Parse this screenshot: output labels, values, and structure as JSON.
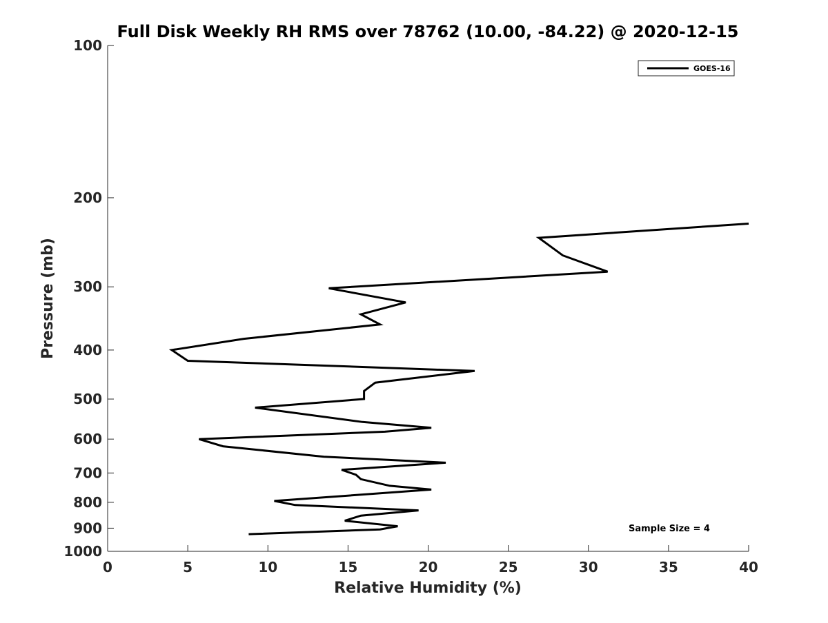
{
  "chart_data": {
    "type": "line",
    "title": "Full Disk Weekly RH RMS over 78762 (10.00, -84.22) @ 2020-12-15",
    "xlabel": "Relative Humidity (%)",
    "ylabel": "Pressure (mb)",
    "xlim": [
      0,
      40
    ],
    "ylim": [
      100,
      1000
    ],
    "y_scale": "log",
    "y_reversed": true,
    "x_ticks": [
      "0",
      "5",
      "10",
      "15",
      "20",
      "25",
      "30",
      "35",
      "40"
    ],
    "y_ticks": [
      "100",
      "200",
      "300",
      "400",
      "500",
      "600",
      "700",
      "800",
      "900",
      "1000"
    ],
    "grid": false,
    "legend_position": "top-right",
    "series": [
      {
        "name": "GOES-16",
        "color": "#000000",
        "points": [
          {
            "x": 40.0,
            "y": 225
          },
          {
            "x": 26.9,
            "y": 240
          },
          {
            "x": 28.4,
            "y": 260
          },
          {
            "x": 31.2,
            "y": 280
          },
          {
            "x": 13.8,
            "y": 302
          },
          {
            "x": 18.6,
            "y": 322
          },
          {
            "x": 15.8,
            "y": 340
          },
          {
            "x": 17.0,
            "y": 356
          },
          {
            "x": 8.5,
            "y": 380
          },
          {
            "x": 4.0,
            "y": 400
          },
          {
            "x": 5.0,
            "y": 420
          },
          {
            "x": 22.9,
            "y": 440
          },
          {
            "x": 16.7,
            "y": 464
          },
          {
            "x": 16.0,
            "y": 482
          },
          {
            "x": 16.0,
            "y": 500
          },
          {
            "x": 9.2,
            "y": 520
          },
          {
            "x": 15.9,
            "y": 555
          },
          {
            "x": 20.2,
            "y": 570
          },
          {
            "x": 17.3,
            "y": 580
          },
          {
            "x": 5.7,
            "y": 600
          },
          {
            "x": 7.2,
            "y": 620
          },
          {
            "x": 13.5,
            "y": 650
          },
          {
            "x": 21.1,
            "y": 668
          },
          {
            "x": 14.6,
            "y": 690
          },
          {
            "x": 15.5,
            "y": 706
          },
          {
            "x": 15.8,
            "y": 720
          },
          {
            "x": 17.6,
            "y": 742
          },
          {
            "x": 20.2,
            "y": 755
          },
          {
            "x": 10.4,
            "y": 795
          },
          {
            "x": 11.7,
            "y": 810
          },
          {
            "x": 19.4,
            "y": 830
          },
          {
            "x": 15.8,
            "y": 850
          },
          {
            "x": 14.8,
            "y": 870
          },
          {
            "x": 18.1,
            "y": 892
          },
          {
            "x": 17.0,
            "y": 905
          },
          {
            "x": 8.8,
            "y": 925
          }
        ]
      }
    ],
    "annotations": [
      {
        "text": "Sample Size = 4"
      }
    ]
  }
}
